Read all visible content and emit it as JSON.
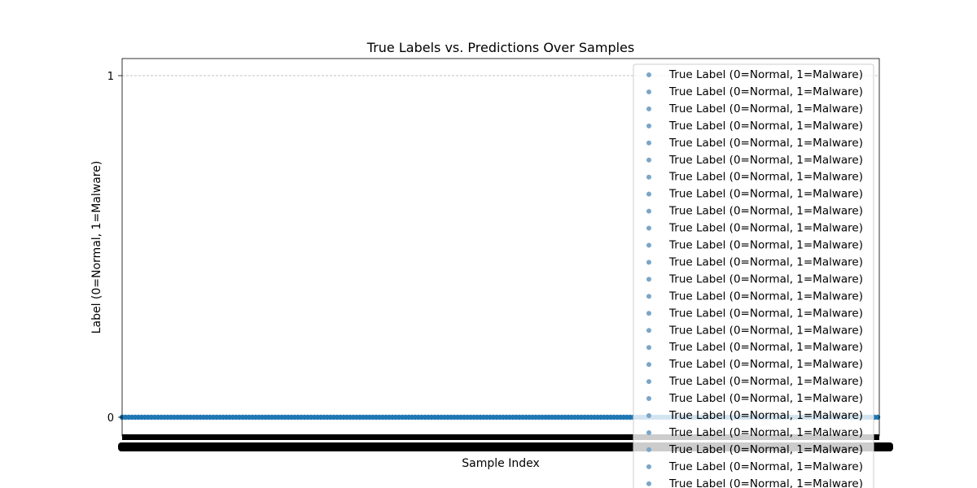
{
  "chart_data": {
    "type": "scatter",
    "title": "True Labels vs. Predictions Over Samples",
    "xlabel": "Sample Index",
    "ylabel": "Label (0=Normal, 1=Malware)",
    "yticks": [
      0,
      1
    ],
    "ylim": [
      -0.05,
      1.05
    ],
    "grid": "y-dashed",
    "legend_position": "upper-right",
    "colors": {
      "marker": "#1f77b4",
      "legend_marker": "#7aa6c8",
      "grid": "#b0b0b0",
      "tick_overlap": "#000000"
    },
    "series": [
      {
        "name": "True Label (0=Normal, 1=Malware)",
        "y_value": 0
      }
    ],
    "legend_entries": [
      "True Label (0=Normal, 1=Malware)",
      "True Label (0=Normal, 1=Malware)",
      "True Label (0=Normal, 1=Malware)",
      "True Label (0=Normal, 1=Malware)",
      "True Label (0=Normal, 1=Malware)",
      "True Label (0=Normal, 1=Malware)",
      "True Label (0=Normal, 1=Malware)",
      "True Label (0=Normal, 1=Malware)",
      "True Label (0=Normal, 1=Malware)",
      "True Label (0=Normal, 1=Malware)",
      "True Label (0=Normal, 1=Malware)",
      "True Label (0=Normal, 1=Malware)",
      "True Label (0=Normal, 1=Malware)",
      "True Label (0=Normal, 1=Malware)",
      "True Label (0=Normal, 1=Malware)",
      "True Label (0=Normal, 1=Malware)",
      "True Label (0=Normal, 1=Malware)",
      "True Label (0=Normal, 1=Malware)",
      "True Label (0=Normal, 1=Malware)",
      "True Label (0=Normal, 1=Malware)",
      "True Label (0=Normal, 1=Malware)",
      "True Label (0=Normal, 1=Malware)",
      "True Label (0=Normal, 1=Malware)",
      "True Label (0=Normal, 1=Malware)",
      "True Label (0=Normal, 1=Malware)"
    ]
  }
}
